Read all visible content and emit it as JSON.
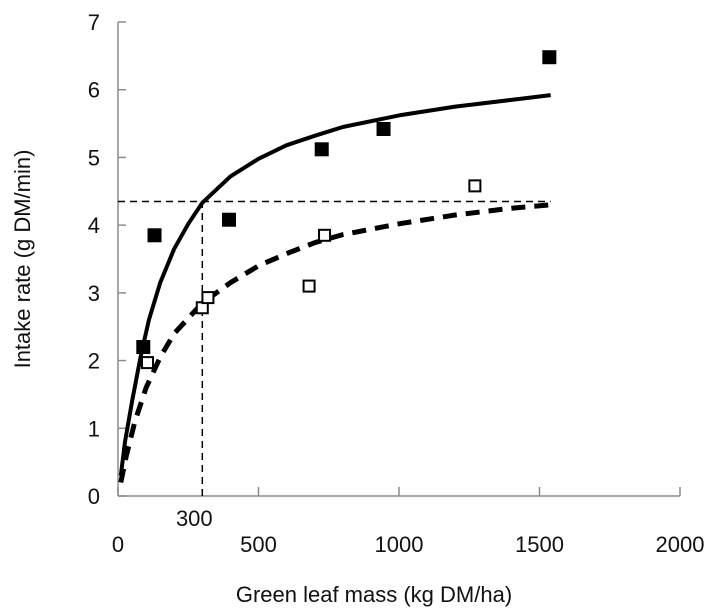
{
  "chart_data": {
    "type": "scatter",
    "xlabel": "Green leaf mass (kg DM/ha)",
    "ylabel": "Intake rate (g DM/min)",
    "xlim": [
      0,
      2000
    ],
    "ylim": [
      0,
      7
    ],
    "x_ticks": [
      0,
      500,
      1000,
      1500,
      2000
    ],
    "y_ticks": [
      0,
      1,
      2,
      3,
      4,
      5,
      6,
      7
    ],
    "grid": false,
    "legend": "none",
    "series": [
      {
        "marker": "filled-square",
        "color": "#000000",
        "points": [
          {
            "x": 90,
            "y": 2.2
          },
          {
            "x": 130,
            "y": 3.85
          },
          {
            "x": 395,
            "y": 4.08
          },
          {
            "x": 725,
            "y": 5.12
          },
          {
            "x": 945,
            "y": 5.42
          },
          {
            "x": 1535,
            "y": 6.48
          }
        ],
        "fit": {
          "style": "solid",
          "color": "#000000",
          "xrange": [
            10,
            1540
          ],
          "samples": [
            {
              "x": 10,
              "y": 0.3
            },
            {
              "x": 25,
              "y": 0.8
            },
            {
              "x": 50,
              "y": 1.4
            },
            {
              "x": 80,
              "y": 2.05
            },
            {
              "x": 110,
              "y": 2.6
            },
            {
              "x": 150,
              "y": 3.15
            },
            {
              "x": 200,
              "y": 3.65
            },
            {
              "x": 250,
              "y": 4.02
            },
            {
              "x": 300,
              "y": 4.33
            },
            {
              "x": 400,
              "y": 4.72
            },
            {
              "x": 500,
              "y": 4.98
            },
            {
              "x": 600,
              "y": 5.18
            },
            {
              "x": 700,
              "y": 5.32
            },
            {
              "x": 800,
              "y": 5.45
            },
            {
              "x": 1000,
              "y": 5.62
            },
            {
              "x": 1200,
              "y": 5.75
            },
            {
              "x": 1400,
              "y": 5.85
            },
            {
              "x": 1540,
              "y": 5.92
            }
          ]
        }
      },
      {
        "marker": "open-square",
        "color": "#000000",
        "points": [
          {
            "x": 105,
            "y": 1.97
          },
          {
            "x": 300,
            "y": 2.78
          },
          {
            "x": 320,
            "y": 2.93
          },
          {
            "x": 680,
            "y": 3.1
          },
          {
            "x": 735,
            "y": 3.85
          },
          {
            "x": 1270,
            "y": 4.58
          }
        ],
        "fit": {
          "style": "dashed",
          "color": "#000000",
          "xrange": [
            10,
            1540
          ],
          "samples": [
            {
              "x": 10,
              "y": 0.2
            },
            {
              "x": 30,
              "y": 0.6
            },
            {
              "x": 60,
              "y": 1.1
            },
            {
              "x": 100,
              "y": 1.6
            },
            {
              "x": 150,
              "y": 2.05
            },
            {
              "x": 200,
              "y": 2.4
            },
            {
              "x": 300,
              "y": 2.85
            },
            {
              "x": 400,
              "y": 3.15
            },
            {
              "x": 500,
              "y": 3.4
            },
            {
              "x": 600,
              "y": 3.58
            },
            {
              "x": 700,
              "y": 3.74
            },
            {
              "x": 800,
              "y": 3.86
            },
            {
              "x": 1000,
              "y": 4.02
            },
            {
              "x": 1200,
              "y": 4.15
            },
            {
              "x": 1400,
              "y": 4.25
            },
            {
              "x": 1540,
              "y": 4.3
            }
          ]
        }
      }
    ],
    "reference_lines": {
      "horizontal": {
        "y": 4.35,
        "x_from": 0,
        "x_to": 1540,
        "style": "dashed"
      },
      "vertical": {
        "x": 300,
        "y_from": 0,
        "y_to": 4.35,
        "style": "dashed",
        "label": "300"
      }
    }
  }
}
